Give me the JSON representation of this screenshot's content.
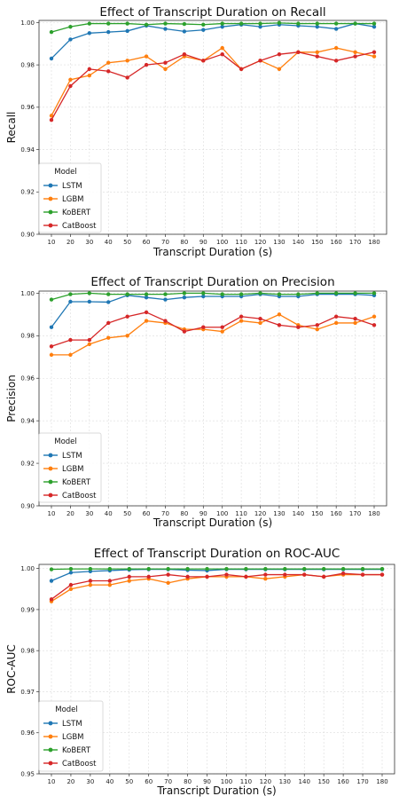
{
  "chart_data": [
    {
      "type": "line",
      "title": "Effect of Transcript Duration on Recall",
      "xlabel": "Transcript Duration (s)",
      "ylabel": "Recall",
      "ylim": [
        0.9,
        1.001
      ],
      "yticks": [
        "0.90",
        "0.92",
        "0.94",
        "0.96",
        "0.98",
        "1.00"
      ],
      "yticks_values": [
        0.9,
        0.92,
        0.94,
        0.96,
        0.98,
        1.0
      ],
      "x": [
        10,
        20,
        30,
        40,
        50,
        60,
        70,
        80,
        90,
        100,
        110,
        120,
        130,
        140,
        150,
        160,
        170,
        180
      ],
      "legend_title": "Model",
      "legend_position": "lower-left",
      "grid": true,
      "series": [
        {
          "name": "LSTM",
          "color": "#1f77b4",
          "values": [
            0.983,
            0.992,
            0.995,
            0.9955,
            0.996,
            0.9985,
            0.997,
            0.9958,
            0.9965,
            0.998,
            0.999,
            0.998,
            0.999,
            0.9985,
            0.998,
            0.997,
            0.9995,
            0.998
          ]
        },
        {
          "name": "LGBM",
          "color": "#ff7f0e",
          "values": [
            0.956,
            0.973,
            0.975,
            0.981,
            0.982,
            0.984,
            0.978,
            0.984,
            0.982,
            0.988,
            0.978,
            0.982,
            0.978,
            0.986,
            0.986,
            0.988,
            0.986,
            0.984
          ]
        },
        {
          "name": "KoBERT",
          "color": "#2ca02c",
          "values": [
            0.9955,
            0.998,
            0.9995,
            0.9995,
            0.9995,
            0.999,
            0.9995,
            0.9993,
            0.999,
            0.9995,
            0.9995,
            0.9995,
            0.9998,
            0.9995,
            0.9995,
            0.9995,
            0.9995,
            0.9995
          ]
        },
        {
          "name": "CatBoost",
          "color": "#d62728",
          "values": [
            0.954,
            0.97,
            0.978,
            0.977,
            0.974,
            0.98,
            0.981,
            0.985,
            0.982,
            0.985,
            0.978,
            0.982,
            0.985,
            0.986,
            0.984,
            0.982,
            0.984,
            0.986
          ]
        }
      ]
    },
    {
      "type": "line",
      "title": "Effect of Transcript Duration on Precision",
      "xlabel": "Transcript Duration (s)",
      "ylabel": "Precision",
      "ylim": [
        0.9,
        1.001
      ],
      "yticks": [
        "0.90",
        "0.92",
        "0.94",
        "0.96",
        "0.98",
        "1.00"
      ],
      "yticks_values": [
        0.9,
        0.92,
        0.94,
        0.96,
        0.98,
        1.0
      ],
      "x": [
        10,
        20,
        30,
        40,
        50,
        60,
        70,
        80,
        90,
        100,
        110,
        120,
        130,
        140,
        150,
        160,
        170,
        180
      ],
      "legend_title": "Model",
      "legend_position": "lower-left",
      "grid": true,
      "series": [
        {
          "name": "LSTM",
          "color": "#1f77b4",
          "values": [
            0.984,
            0.996,
            0.996,
            0.9958,
            0.999,
            0.998,
            0.997,
            0.998,
            0.9985,
            0.9985,
            0.9985,
            0.9995,
            0.9985,
            0.9985,
            0.9995,
            0.9995,
            0.9995,
            0.999
          ]
        },
        {
          "name": "LGBM",
          "color": "#ff7f0e",
          "values": [
            0.971,
            0.971,
            0.976,
            0.979,
            0.98,
            0.987,
            0.986,
            0.983,
            0.983,
            0.982,
            0.987,
            0.986,
            0.99,
            0.985,
            0.983,
            0.986,
            0.986,
            0.989
          ]
        },
        {
          "name": "KoBERT",
          "color": "#2ca02c",
          "values": [
            0.997,
            0.9995,
            1.0,
            0.9995,
            0.9995,
            0.9995,
            0.9995,
            1.0,
            1.0,
            0.9995,
            0.9995,
            1.0,
            0.9995,
            0.9995,
            1.0,
            1.0,
            1.0,
            1.0
          ]
        },
        {
          "name": "CatBoost",
          "color": "#d62728",
          "values": [
            0.975,
            0.978,
            0.978,
            0.986,
            0.989,
            0.991,
            0.987,
            0.982,
            0.984,
            0.984,
            0.989,
            0.988,
            0.985,
            0.984,
            0.985,
            0.989,
            0.988,
            0.985
          ]
        }
      ]
    },
    {
      "type": "line",
      "title": "Effect of Transcript Duration on ROC-AUC",
      "xlabel": "Transcript Duration (s)",
      "ylabel": "ROC-AUC",
      "ylim": [
        0.95,
        1.001
      ],
      "yticks": [
        "0.95",
        "0.96",
        "0.97",
        "0.98",
        "0.99",
        "1.00"
      ],
      "yticks_values": [
        0.95,
        0.96,
        0.97,
        0.98,
        0.99,
        1.0
      ],
      "x": [
        10,
        20,
        30,
        40,
        50,
        60,
        70,
        80,
        90,
        100,
        110,
        120,
        130,
        140,
        150,
        160,
        170,
        180
      ],
      "legend_title": "Model",
      "legend_position": "lower-left",
      "grid": true,
      "series": [
        {
          "name": "LSTM",
          "color": "#1f77b4",
          "values": [
            0.997,
            0.999,
            0.9993,
            0.9995,
            0.9997,
            0.9998,
            0.9998,
            0.9996,
            0.9995,
            0.9998,
            0.9998,
            0.9998,
            0.9998,
            0.9998,
            0.9998,
            0.9998,
            0.9998,
            0.9998
          ]
        },
        {
          "name": "LGBM",
          "color": "#ff7f0e",
          "values": [
            0.992,
            0.995,
            0.996,
            0.996,
            0.997,
            0.9975,
            0.9965,
            0.9975,
            0.998,
            0.998,
            0.998,
            0.9975,
            0.998,
            0.9985,
            0.998,
            0.9985,
            0.9985,
            0.9985
          ]
        },
        {
          "name": "KoBERT",
          "color": "#2ca02c",
          "values": [
            0.9998,
            0.9999,
            0.9999,
            0.9999,
            0.9999,
            0.9999,
            0.9999,
            0.9999,
            0.9999,
            0.9999,
            0.9999,
            0.9999,
            0.9999,
            0.9999,
            0.9999,
            0.9999,
            0.9999,
            0.9999
          ]
        },
        {
          "name": "CatBoost",
          "color": "#d62728",
          "values": [
            0.9925,
            0.996,
            0.997,
            0.997,
            0.998,
            0.998,
            0.9985,
            0.998,
            0.998,
            0.9985,
            0.998,
            0.9985,
            0.9985,
            0.9985,
            0.998,
            0.9988,
            0.9985,
            0.9985
          ]
        }
      ]
    }
  ]
}
